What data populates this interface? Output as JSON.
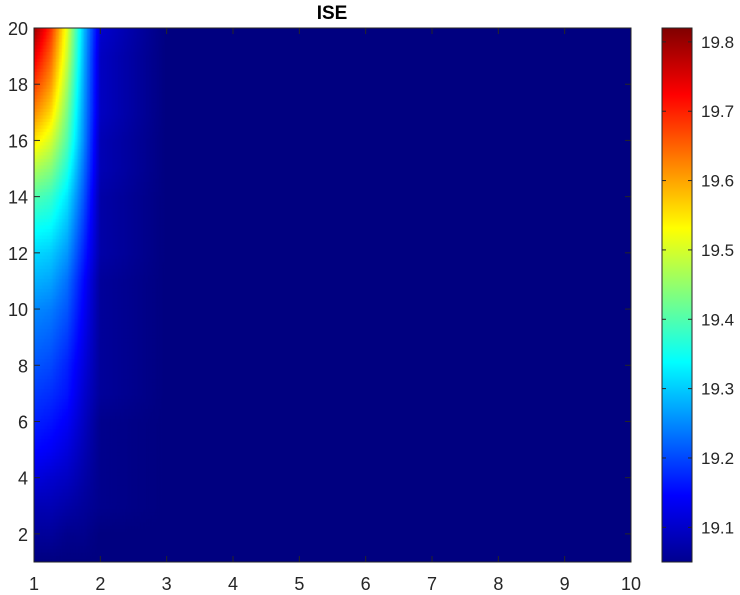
{
  "chart_data": {
    "type": "heatmap",
    "title": "ISE",
    "xlabel": "",
    "ylabel": "",
    "colormap": "jet",
    "xlim": [
      1,
      10
    ],
    "ylim": [
      1,
      20
    ],
    "x_ticks": [
      "1",
      "2",
      "3",
      "4",
      "5",
      "6",
      "7",
      "8",
      "9",
      "10"
    ],
    "y_ticks": [
      "2",
      "4",
      "6",
      "8",
      "10",
      "12",
      "14",
      "16",
      "18",
      "20"
    ],
    "colorbar": {
      "clim": [
        19.05,
        19.82
      ],
      "ticks": [
        "19.1",
        "19.2",
        "19.3",
        "19.4",
        "19.5",
        "19.6",
        "19.7",
        "19.8"
      ]
    },
    "x": [
      1,
      1.25,
      1.5,
      1.75,
      2,
      3,
      4,
      5,
      6,
      7,
      8,
      9,
      10
    ],
    "y": [
      1,
      2,
      3,
      4,
      5,
      6,
      7,
      8,
      9,
      10,
      11,
      12,
      13,
      14,
      15,
      16,
      17,
      18,
      19,
      20
    ],
    "z_rows_by_y": [
      [
        19.05,
        19.05,
        19.05,
        19.05,
        19.05,
        19.05,
        19.05,
        19.05,
        19.05,
        19.05,
        19.05,
        19.05,
        19.05
      ],
      [
        19.07,
        19.07,
        19.06,
        19.06,
        19.05,
        19.05,
        19.05,
        19.05,
        19.05,
        19.05,
        19.05,
        19.05,
        19.05
      ],
      [
        19.09,
        19.09,
        19.08,
        19.07,
        19.06,
        19.05,
        19.05,
        19.05,
        19.05,
        19.05,
        19.05,
        19.05,
        19.05
      ],
      [
        19.12,
        19.11,
        19.1,
        19.08,
        19.06,
        19.05,
        19.05,
        19.05,
        19.05,
        19.05,
        19.05,
        19.05,
        19.05
      ],
      [
        19.15,
        19.14,
        19.12,
        19.09,
        19.06,
        19.05,
        19.05,
        19.05,
        19.05,
        19.05,
        19.05,
        19.05,
        19.05
      ],
      [
        19.17,
        19.16,
        19.14,
        19.1,
        19.06,
        19.05,
        19.05,
        19.05,
        19.05,
        19.05,
        19.05,
        19.05,
        19.05
      ],
      [
        19.19,
        19.18,
        19.16,
        19.11,
        19.07,
        19.05,
        19.05,
        19.05,
        19.05,
        19.05,
        19.05,
        19.05,
        19.05
      ],
      [
        19.21,
        19.2,
        19.17,
        19.12,
        19.07,
        19.05,
        19.05,
        19.05,
        19.05,
        19.05,
        19.05,
        19.05,
        19.05
      ],
      [
        19.23,
        19.22,
        19.19,
        19.13,
        19.07,
        19.05,
        19.05,
        19.05,
        19.05,
        19.05,
        19.05,
        19.05,
        19.05
      ],
      [
        19.25,
        19.24,
        19.21,
        19.14,
        19.07,
        19.05,
        19.05,
        19.05,
        19.05,
        19.05,
        19.05,
        19.05,
        19.05
      ],
      [
        19.28,
        19.27,
        19.23,
        19.15,
        19.07,
        19.05,
        19.05,
        19.05,
        19.05,
        19.05,
        19.05,
        19.05,
        19.05
      ],
      [
        19.31,
        19.3,
        19.26,
        19.17,
        19.08,
        19.05,
        19.05,
        19.05,
        19.05,
        19.05,
        19.05,
        19.05,
        19.05
      ],
      [
        19.35,
        19.34,
        19.29,
        19.19,
        19.08,
        19.05,
        19.05,
        19.05,
        19.05,
        19.05,
        19.05,
        19.05,
        19.05
      ],
      [
        19.4,
        19.38,
        19.32,
        19.21,
        19.08,
        19.05,
        19.05,
        19.05,
        19.05,
        19.05,
        19.05,
        19.05,
        19.05
      ],
      [
        19.47,
        19.44,
        19.36,
        19.23,
        19.09,
        19.05,
        19.05,
        19.05,
        19.05,
        19.05,
        19.05,
        19.05,
        19.05
      ],
      [
        19.55,
        19.5,
        19.4,
        19.25,
        19.09,
        19.05,
        19.05,
        19.05,
        19.05,
        19.05,
        19.05,
        19.05,
        19.05
      ],
      [
        19.62,
        19.56,
        19.43,
        19.26,
        19.1,
        19.05,
        19.05,
        19.05,
        19.05,
        19.05,
        19.05,
        19.05,
        19.05
      ],
      [
        19.68,
        19.61,
        19.46,
        19.27,
        19.1,
        19.05,
        19.05,
        19.05,
        19.05,
        19.05,
        19.05,
        19.05,
        19.05
      ],
      [
        19.74,
        19.65,
        19.49,
        19.28,
        19.1,
        19.05,
        19.05,
        19.05,
        19.05,
        19.05,
        19.05,
        19.05,
        19.05
      ],
      [
        19.8,
        19.69,
        19.51,
        19.29,
        19.11,
        19.05,
        19.05,
        19.05,
        19.05,
        19.05,
        19.05,
        19.05,
        19.05
      ]
    ]
  }
}
